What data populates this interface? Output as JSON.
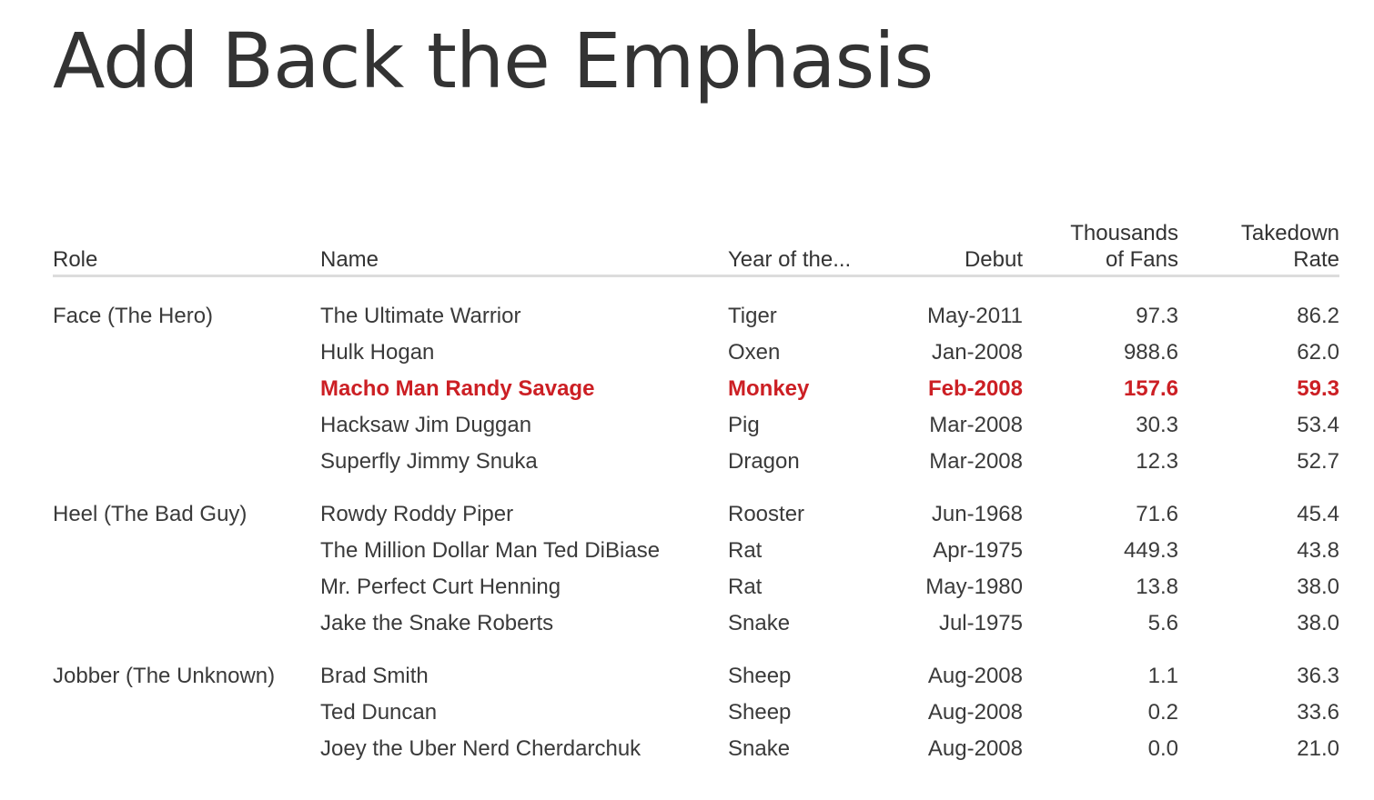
{
  "chart_data": {
    "type": "table",
    "title": "Add Back the Emphasis",
    "columns": [
      "Role",
      "Name",
      "Year of the...",
      "Debut",
      "Thousands of Fans",
      "Takedown Rate"
    ],
    "header_lines": {
      "role": "Role",
      "name": "Name",
      "year": "Year of the...",
      "debut": "Debut",
      "fans_1": "Thousands",
      "fans_2": "of Fans",
      "take_1": "Takedown",
      "take_2": "Rate"
    },
    "groups": [
      {
        "role": "Face (The Hero)",
        "rows": [
          {
            "name": "The Ultimate Warrior",
            "year": "Tiger",
            "debut": "May-2011",
            "fans": "97.3",
            "takedown": "86.2",
            "highlight": false
          },
          {
            "name": "Hulk Hogan",
            "year": "Oxen",
            "debut": "Jan-2008",
            "fans": "988.6",
            "takedown": "62.0",
            "highlight": false
          },
          {
            "name": "Macho Man Randy Savage",
            "year": "Monkey",
            "debut": "Feb-2008",
            "fans": "157.6",
            "takedown": "59.3",
            "highlight": true
          },
          {
            "name": "Hacksaw Jim Duggan",
            "year": "Pig",
            "debut": "Mar-2008",
            "fans": "30.3",
            "takedown": "53.4",
            "highlight": false
          },
          {
            "name": "Superfly Jimmy Snuka",
            "year": "Dragon",
            "debut": "Mar-2008",
            "fans": "12.3",
            "takedown": "52.7",
            "highlight": false
          }
        ]
      },
      {
        "role": "Heel (The Bad Guy)",
        "rows": [
          {
            "name": "Rowdy Roddy Piper",
            "year": "Rooster",
            "debut": "Jun-1968",
            "fans": "71.6",
            "takedown": "45.4",
            "highlight": false
          },
          {
            "name": "The Million Dollar Man Ted DiBiase",
            "year": "Rat",
            "debut": "Apr-1975",
            "fans": "449.3",
            "takedown": "43.8",
            "highlight": false
          },
          {
            "name": "Mr. Perfect Curt Henning",
            "year": "Rat",
            "debut": "May-1980",
            "fans": "13.8",
            "takedown": "38.0",
            "highlight": false
          },
          {
            "name": "Jake the Snake Roberts",
            "year": "Snake",
            "debut": "Jul-1975",
            "fans": "5.6",
            "takedown": "38.0",
            "highlight": false
          }
        ]
      },
      {
        "role": "Jobber (The Unknown)",
        "rows": [
          {
            "name": "Brad Smith",
            "year": "Sheep",
            "debut": "Aug-2008",
            "fans": "1.1",
            "takedown": "36.3",
            "highlight": false
          },
          {
            "name": "Ted Duncan",
            "year": "Sheep",
            "debut": "Aug-2008",
            "fans": "0.2",
            "takedown": "33.6",
            "highlight": false
          },
          {
            "name": "Joey the Uber Nerd Cherdarchuk",
            "year": "Snake",
            "debut": "Aug-2008",
            "fans": "0.0",
            "takedown": "21.0",
            "highlight": false
          }
        ]
      }
    ],
    "colors": {
      "text": "#3a3a3a",
      "highlight": "#cc1f24",
      "rule": "#dcdcdc"
    }
  }
}
